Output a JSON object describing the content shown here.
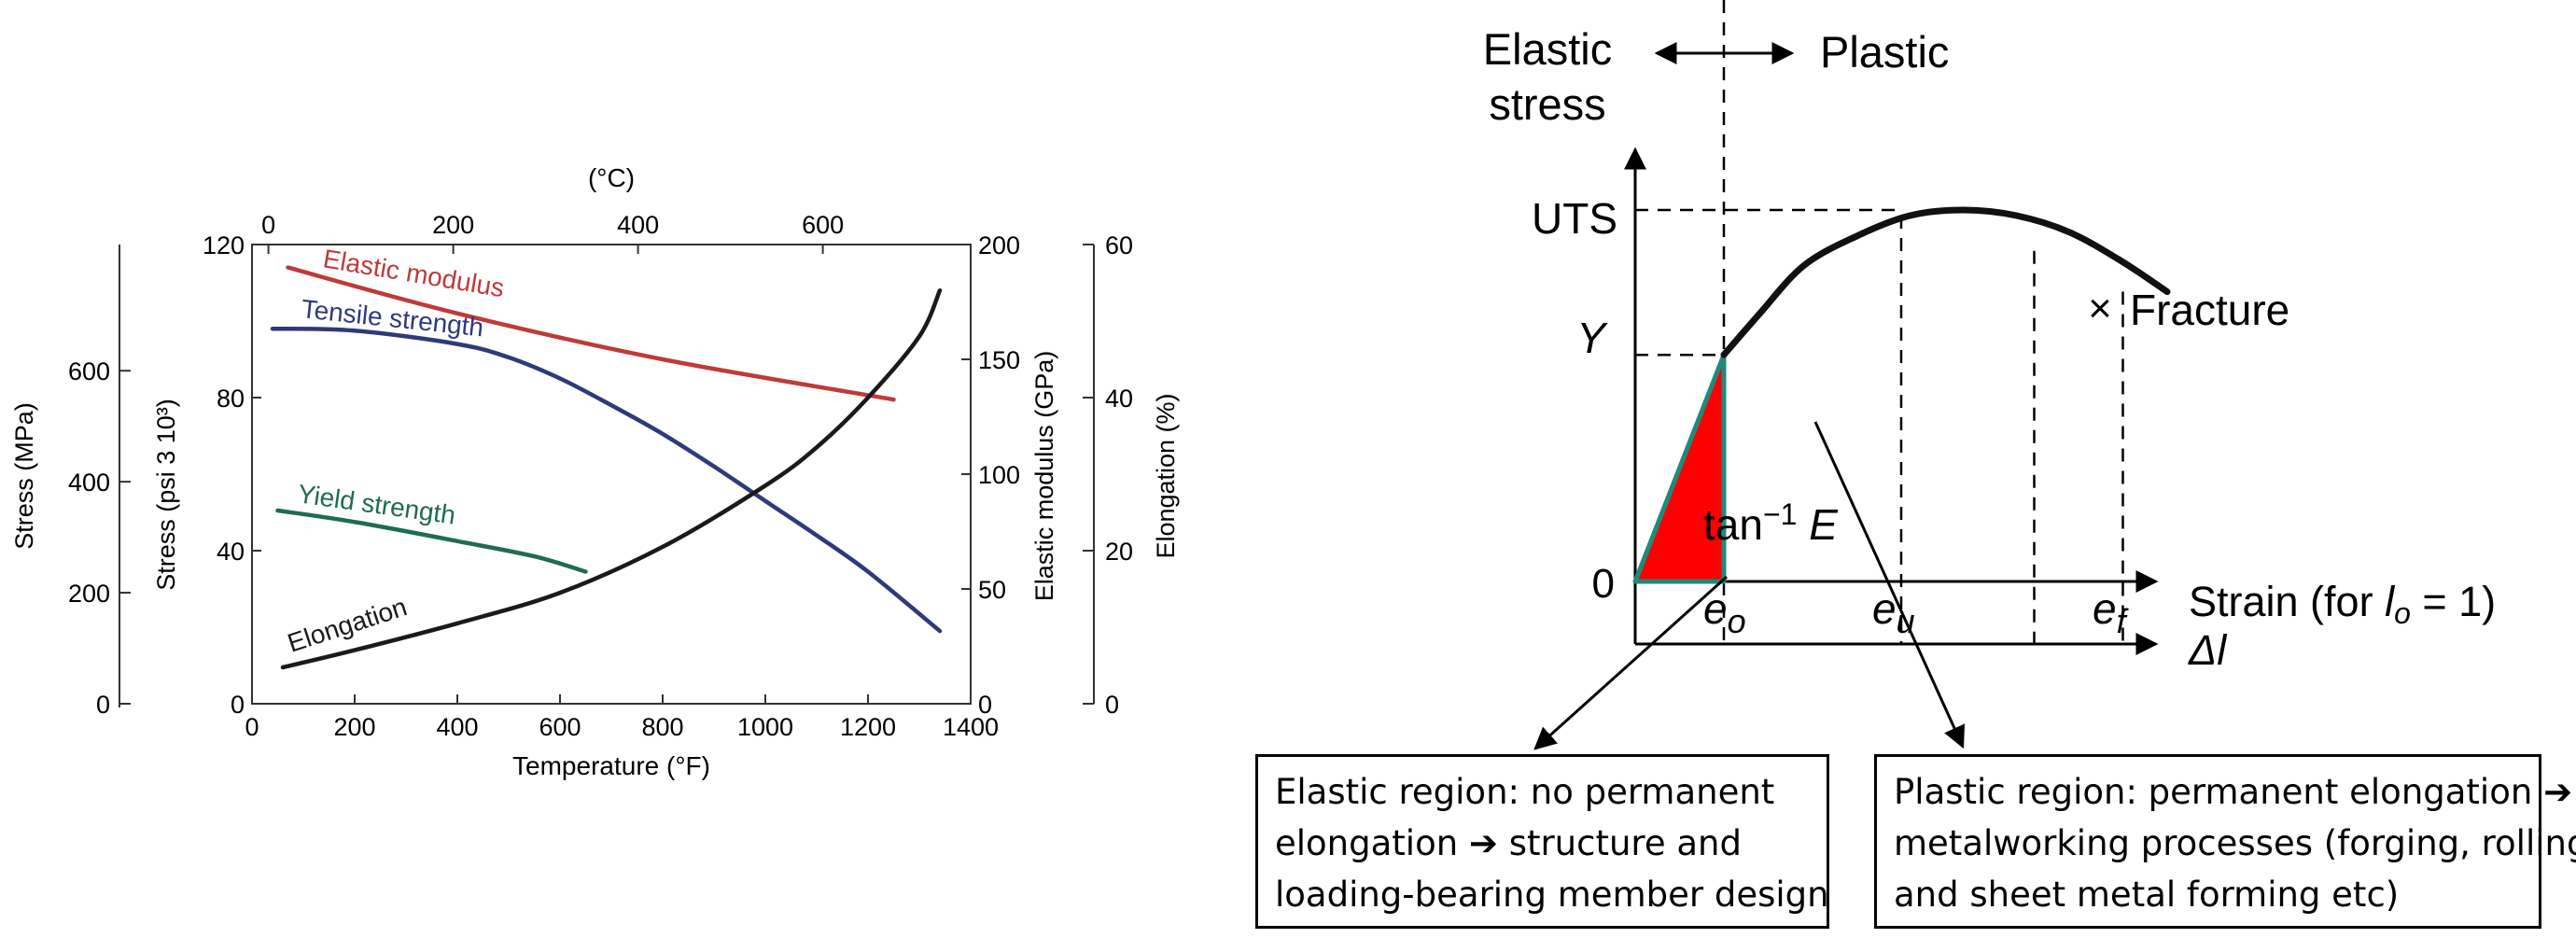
{
  "chart_data": [
    {
      "type": "line",
      "title": "",
      "xlabel": "Temperature (°F)",
      "top_axis_label": "(°C)",
      "x_ticks": [
        0,
        200,
        400,
        600,
        800,
        1000,
        1200,
        1400
      ],
      "top_ticks": [
        0,
        200,
        400,
        600
      ],
      "xlim": [
        0,
        1400
      ],
      "ylabel_psi": "Stress  (psi 3 10³)",
      "ylim_psi": [
        0,
        120
      ],
      "psi_ticks": [
        0,
        40,
        80,
        120
      ],
      "ylabel_mpa": "Stress (MPa)",
      "mpa_ticks": [
        0,
        200,
        400,
        600
      ],
      "ylabel_gpa": "Elastic modulus (GPa)",
      "gpa_ticks": [
        0,
        50,
        100,
        150,
        200
      ],
      "ylabel_elong": "Elongation (%)",
      "elong_ticks": [
        0,
        20,
        40,
        60
      ],
      "grid": false,
      "series": [
        {
          "name": "Elastic modulus",
          "axis": "psi",
          "color": "#c0393b",
          "x": [
            70,
            400,
            800,
            1250
          ],
          "y": [
            114,
            102,
            90,
            79.5
          ]
        },
        {
          "name": "Tensile strength",
          "axis": "psi",
          "color": "#2e3a7a",
          "x": [
            40,
            200,
            400,
            500,
            600,
            700,
            800,
            900,
            1000,
            1100,
            1200,
            1340
          ],
          "y": [
            98,
            97.5,
            94,
            90.5,
            85,
            78,
            70.5,
            62,
            53,
            44,
            34.5,
            19
          ]
        },
        {
          "name": "Yield strength",
          "axis": "psi",
          "color": "#1f6b55",
          "x": [
            50,
            200,
            400,
            550,
            650
          ],
          "y": [
            50.5,
            47.5,
            42.5,
            38.5,
            34.5
          ]
        },
        {
          "name": "Elongation",
          "axis": "psi",
          "color": "#1a1a1a",
          "x": [
            60,
            200,
            400,
            600,
            800,
            1000,
            1100,
            1200,
            1300,
            1340
          ],
          "y": [
            9.5,
            14,
            21,
            29,
            41,
            57,
            67,
            80,
            96,
            108
          ]
        }
      ]
    },
    {
      "type": "line",
      "title": "",
      "xlabel": "Strain (for lₒ = 1)",
      "xlabel_second_axis": "Δl",
      "header_left": "Elastic\nstress",
      "header_right": "Plastic",
      "ytick_labels": [
        "0",
        "Y",
        "UTS"
      ],
      "xtick_labels": [
        "eo",
        "eu",
        "ef"
      ],
      "slope_label": "tan⁻¹ E",
      "fracture_label": "Fracture",
      "elastic_fill_color": "#ff0000",
      "elastic_edge_color": "#1f8a7a",
      "curve": {
        "strain": [
          0,
          0.1,
          0.14,
          0.19,
          0.25,
          0.31,
          0.37,
          0.43,
          0.49,
          0.55,
          0.6
        ],
        "stress": [
          0,
          0.61,
          0.72,
          0.85,
          0.93,
          0.985,
          1.0,
          0.985,
          0.94,
          0.86,
          0.78
        ]
      },
      "dashed_x": [
        0.1,
        0.3,
        0.45,
        0.55
      ],
      "y_levels": {
        "Y": 0.61,
        "UTS": 1.0
      }
    }
  ],
  "callouts": {
    "elastic": [
      "Elastic region: no permanent",
      "elongation ➔ structure and",
      "loading-bearing member design"
    ],
    "plastic": [
      "Plastic region: permanent elongation ➔",
      "metalworking processes (forging, rolling,",
      "and sheet metal forming etc)"
    ]
  }
}
